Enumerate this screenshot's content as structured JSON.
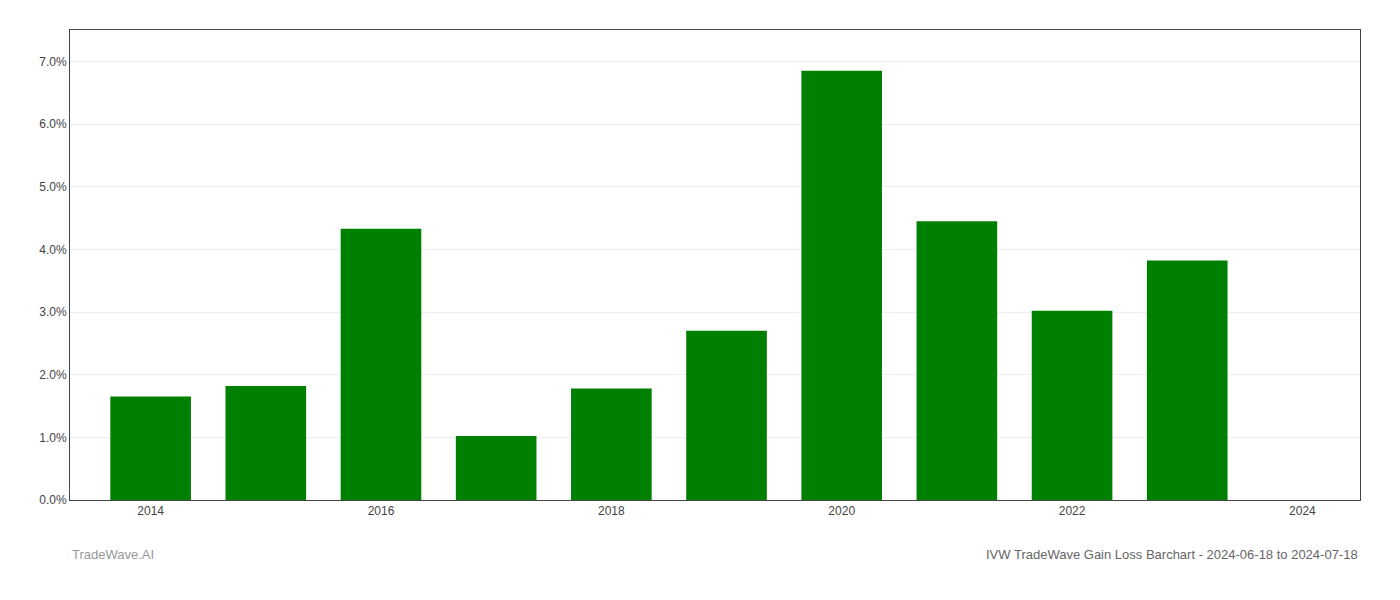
{
  "chart_data": {
    "type": "bar",
    "title": "IVW TradeWave Gain Loss Barchart - 2024-06-18 to 2024-07-18",
    "annotations": [
      "TradeWave.AI"
    ],
    "x": [
      2014,
      2015,
      2016,
      2017,
      2018,
      2019,
      2020,
      2021,
      2022,
      2023
    ],
    "values": [
      0.0165,
      0.0182,
      0.0433,
      0.0102,
      0.0178,
      0.027,
      0.0685,
      0.0445,
      0.0302,
      0.0382
    ],
    "color": "#008000",
    "xlim": [
      2013.3,
      2024.5
    ],
    "xticks": [
      2014,
      2016,
      2018,
      2020,
      2022,
      2024
    ],
    "ylim": [
      0,
      0.075
    ],
    "yticks": [
      {
        "value": 0.0,
        "label": "0.0%"
      },
      {
        "value": 0.01,
        "label": "1.0%"
      },
      {
        "value": 0.02,
        "label": "2.0%"
      },
      {
        "value": 0.03,
        "label": "3.0%"
      },
      {
        "value": 0.04,
        "label": "4.0%"
      },
      {
        "value": 0.05,
        "label": "5.0%"
      },
      {
        "value": 0.06,
        "label": "6.0%"
      },
      {
        "value": 0.07,
        "label": "7.0%"
      }
    ],
    "grid": true
  }
}
